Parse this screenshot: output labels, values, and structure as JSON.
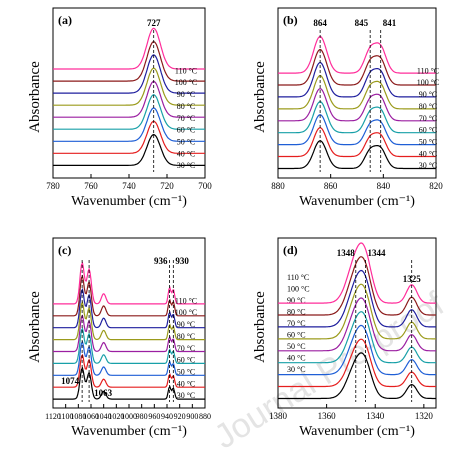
{
  "watermark": "Journal Pre-proof",
  "temperatures": [
    "110 °C",
    "100 °C",
    "90 °C",
    "80 °C",
    "70 °C",
    "60 °C",
    "50 °C",
    "40 °C",
    "30 °C"
  ],
  "series_colors": [
    "#ff2d9a",
    "#8b1a1a",
    "#1f1f9e",
    "#9b9b1c",
    "#9b1fa1",
    "#18a0a8",
    "#1f5fd6",
    "#e51e1e",
    "#000000"
  ],
  "chart_data": [
    {
      "type": "line",
      "panel": "(a)",
      "title": "",
      "xlabel": "Wavenumber (cm⁻¹)",
      "ylabel": "Absorbance",
      "xlim": [
        780,
        700
      ],
      "xticks": [
        780,
        760,
        740,
        720,
        700
      ],
      "x_reversed": true,
      "grid": false,
      "legend": "right, stacked labels",
      "series_order": [
        "30 °C",
        "40 °C",
        "50 °C",
        "60 °C",
        "70 °C",
        "80 °C",
        "90 °C",
        "100 °C",
        "110 °C"
      ],
      "peaks": [
        {
          "position": 727,
          "height": 1.0,
          "width": 5
        }
      ],
      "baseline": 0.15,
      "annotations": [
        {
          "x": 727,
          "label": "727"
        }
      ]
    },
    {
      "type": "line",
      "panel": "(b)",
      "title": "",
      "xlabel": "Wavenumber (cm⁻¹)",
      "ylabel": "Absorbance",
      "xlim": [
        880,
        820
      ],
      "xticks": [
        880,
        860,
        840,
        820
      ],
      "x_reversed": true,
      "grid": false,
      "legend": "right, stacked labels",
      "series_order": [
        "30 °C",
        "40 °C",
        "50 °C",
        "60 °C",
        "70 °C",
        "80 °C",
        "90 °C",
        "100 °C",
        "110 °C"
      ],
      "peaks": [
        {
          "position": 864,
          "height": 0.9,
          "width": 3.5
        },
        {
          "position": 845,
          "height": 0.55,
          "width": 3
        },
        {
          "position": 841,
          "height": 0.6,
          "width": 3
        }
      ],
      "baseline": 0.05,
      "annotations": [
        {
          "x": 864,
          "label": "864"
        },
        {
          "x": 845,
          "label": "845"
        },
        {
          "x": 841,
          "label": "841"
        }
      ]
    },
    {
      "type": "line",
      "panel": "(c)",
      "title": "",
      "xlabel": "Wavenumber (cm⁻¹)",
      "ylabel": "Absorbance",
      "xlim": [
        1120,
        880
      ],
      "xticks": [
        1120,
        1100,
        1080,
        1060,
        1040,
        1020,
        1000,
        980,
        960,
        940,
        920,
        900,
        880
      ],
      "x_reversed": true,
      "grid": false,
      "legend": "right, stacked labels",
      "series_order": [
        "30 °C",
        "40 °C",
        "50 °C",
        "60 °C",
        "70 °C",
        "80 °C",
        "90 °C",
        "100 °C",
        "110 °C"
      ],
      "peaks": [
        {
          "position": 1074,
          "height": 1.0,
          "width": 5
        },
        {
          "position": 1063,
          "height": 0.85,
          "width": 5
        },
        {
          "position": 1040,
          "height": 0.25,
          "width": 5
        },
        {
          "position": 936,
          "height": 0.4,
          "width": 3
        },
        {
          "position": 930,
          "height": 0.35,
          "width": 3
        }
      ],
      "baseline": 0.03,
      "annotations": [
        {
          "x": 1074,
          "label": "1074"
        },
        {
          "x": 1063,
          "label": "1063"
        },
        {
          "x": 936,
          "label": "936"
        },
        {
          "x": 930,
          "label": "930"
        }
      ]
    },
    {
      "type": "line",
      "panel": "(d)",
      "title": "",
      "xlabel": "Wavenumber (cm⁻¹)",
      "ylabel": "Absorbance",
      "xlim": [
        1380,
        1315
      ],
      "xticks": [
        1380,
        1360,
        1340,
        1320
      ],
      "x_reversed": true,
      "grid": false,
      "legend": "top-left, stacked labels",
      "series_order": [
        "30 °C",
        "40 °C",
        "50 °C",
        "60 °C",
        "70 °C",
        "80 °C",
        "90 °C",
        "100 °C",
        "110 °C"
      ],
      "peaks": [
        {
          "position": 1348,
          "height": 1.0,
          "width": 5
        },
        {
          "position": 1344,
          "height": 0.8,
          "width": 4
        },
        {
          "position": 1325,
          "height": 0.45,
          "width": 3
        }
      ],
      "baseline": 0.05,
      "annotations": [
        {
          "x": 1348,
          "label": "1348"
        },
        {
          "x": 1344,
          "label": "1344"
        },
        {
          "x": 1325,
          "label": "1325"
        }
      ]
    }
  ]
}
